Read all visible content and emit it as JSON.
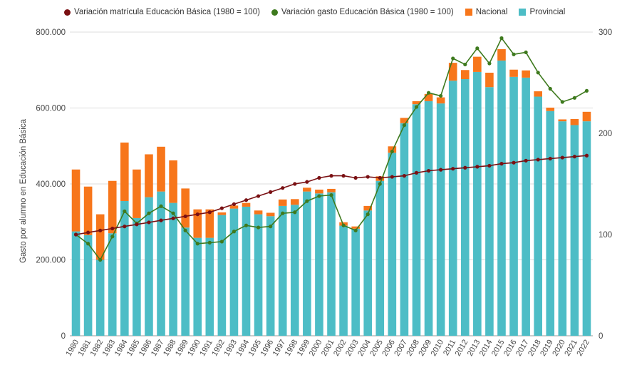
{
  "chart_data": {
    "type": "bar",
    "stacked": true,
    "ylabel": "Gasto por alumno en Educación Básica",
    "ylim": [
      0,
      800000
    ],
    "y2lim": [
      0,
      300
    ],
    "yticks": [
      "0",
      "200.000",
      "400.000",
      "600.000",
      "800.000"
    ],
    "yticks_values": [
      0,
      200000,
      400000,
      600000,
      800000
    ],
    "y2ticks": [
      "0",
      "100",
      "200",
      "300"
    ],
    "y2ticks_values": [
      0,
      100,
      200,
      300
    ],
    "grid": true,
    "legend_position": "top",
    "categories": [
      "1980",
      "1981",
      "1982",
      "1983",
      "1984",
      "1985",
      "1986",
      "1987",
      "1988",
      "1989",
      "1990",
      "1991",
      "1992",
      "1993",
      "1994",
      "1995",
      "1996",
      "1997",
      "1998",
      "1999",
      "2000",
      "2001",
      "2002",
      "2003",
      "2004",
      "2005",
      "2006",
      "2007",
      "2008",
      "2009",
      "2010",
      "2011",
      "2012",
      "2013",
      "2014",
      "2015",
      "2016",
      "2017",
      "2018",
      "2019",
      "2020",
      "2021",
      "2022"
    ],
    "series": [
      {
        "name": "Provincial",
        "kind": "bar",
        "axis": "left",
        "color": "#4dbdc6",
        "values": [
          275000,
          265000,
          200000,
          270000,
          355000,
          310000,
          365000,
          380000,
          350000,
          285000,
          258000,
          258000,
          318000,
          335000,
          340000,
          320000,
          315000,
          342000,
          345000,
          380000,
          375000,
          378000,
          290000,
          282000,
          330000,
          408000,
          482000,
          560000,
          610000,
          618000,
          612000,
          672000,
          676000,
          695000,
          655000,
          725000,
          682000,
          680000,
          630000,
          592000,
          565000,
          555000,
          565000
        ]
      },
      {
        "name": "Nacional",
        "kind": "bar",
        "axis": "left",
        "color": "#f7761b",
        "values": [
          163000,
          128000,
          120000,
          138000,
          154000,
          128000,
          113000,
          118000,
          112000,
          103000,
          75000,
          75000,
          7000,
          8000,
          10000,
          10000,
          9000,
          17000,
          15000,
          10000,
          10000,
          9000,
          9000,
          6000,
          12000,
          12000,
          17000,
          14000,
          8000,
          19000,
          16000,
          47000,
          24000,
          40000,
          38000,
          30000,
          19000,
          19000,
          14000,
          9000,
          5000,
          16000,
          25000
        ]
      },
      {
        "name": "Variación matrícula Educación Básica (1980 = 100)",
        "kind": "line",
        "axis": "right",
        "color": "#7a1013",
        "values": [
          100,
          102,
          104,
          106,
          108,
          110,
          112,
          114,
          116,
          118,
          120,
          122,
          126,
          130,
          134,
          138,
          142,
          146,
          150,
          152,
          156,
          158,
          158,
          156,
          157,
          156,
          157,
          158,
          161,
          163,
          164,
          165,
          166,
          167,
          168,
          170,
          171,
          173,
          174,
          175,
          176,
          177,
          178
        ]
      },
      {
        "name": "Variación gasto Educación Básica (1980 = 100)",
        "kind": "line",
        "axis": "right",
        "color": "#3e7a1e",
        "values": [
          100,
          91,
          75,
          98,
          123,
          111,
          121,
          128,
          121,
          104,
          91,
          92,
          93,
          103,
          109,
          107,
          108,
          121,
          122,
          133,
          138,
          139,
          109,
          104,
          120,
          150,
          182,
          208,
          226,
          240,
          237,
          274,
          268,
          284,
          269,
          294,
          278,
          280,
          260,
          244,
          231,
          235,
          242
        ]
      }
    ]
  }
}
